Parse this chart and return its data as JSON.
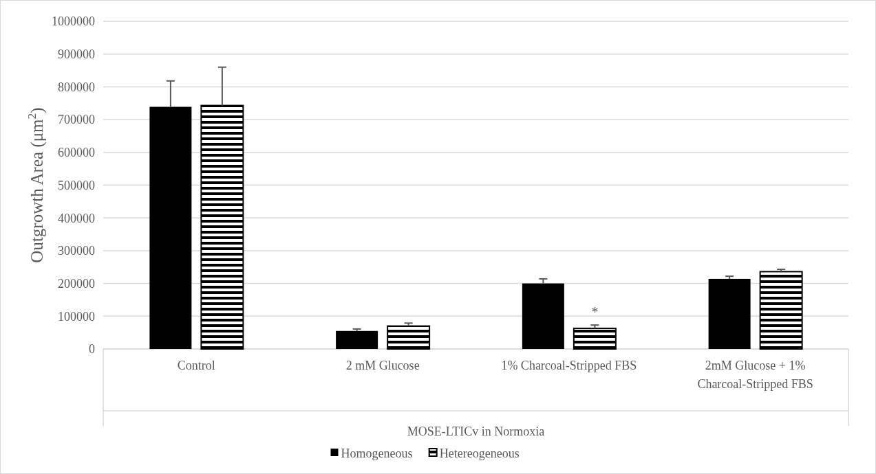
{
  "chart_data": {
    "type": "bar",
    "ylabel": "Outgrowth Area (μm$^{2}$)",
    "xlabel": "MOSE-LTICv in Normoxia",
    "categories": [
      "Control",
      "2 mM Glucose",
      "1% Charcoal-Stripped FBS",
      "2mM Glucose + 1% Charcoal-Stripped FBS"
    ],
    "series": [
      {
        "name": "Homogeneous",
        "color": "#000000",
        "values": [
          739000,
          55000,
          200000,
          214000
        ],
        "errors": [
          [
            739000,
            818000
          ],
          [
            55000,
            61000
          ],
          [
            200000,
            214000
          ],
          [
            214000,
            222000
          ]
        ]
      },
      {
        "name": "Hetereogeneous",
        "color": "#000000",
        "values": [
          743000,
          70000,
          63000,
          236000
        ],
        "errors": [
          [
            743000,
            860000
          ],
          [
            70000,
            79000
          ],
          [
            63000,
            73000
          ],
          [
            236000,
            243000
          ]
        ],
        "value_labels": [
          null,
          null,
          "*",
          null
        ]
      }
    ],
    "ylim": [
      0,
      1000000
    ],
    "yticks": [
      0,
      100000,
      200000,
      300000,
      400000,
      500000,
      600000,
      700000,
      800000,
      900000,
      1000000
    ],
    "grid": "y",
    "legend": "bottom"
  }
}
